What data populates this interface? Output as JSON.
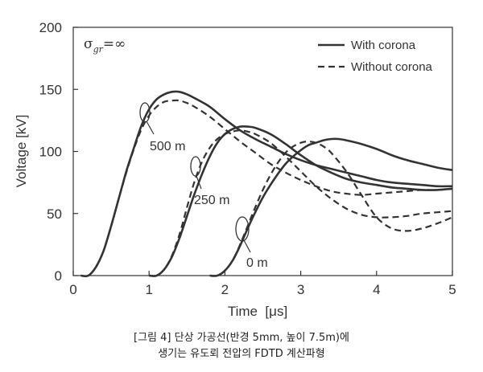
{
  "chart_data": {
    "type": "line",
    "xlabel": "Time  [μs]",
    "ylabel": "Voltage  [kV]",
    "xlim": [
      0,
      5
    ],
    "ylim": [
      0,
      200
    ],
    "x_ticks": [
      "0",
      "1",
      "2",
      "3",
      "4",
      "5"
    ],
    "y_ticks": [
      "0",
      "50",
      "100",
      "150",
      "200"
    ],
    "grid": false,
    "legend_position": "top-right",
    "legend": [
      {
        "label": "With corona",
        "style": "solid"
      },
      {
        "label": "Without corona",
        "style": "dashed"
      }
    ],
    "annotation_sigma": {
      "symbol": "σ",
      "sub": "gr",
      "rest": "=∞"
    },
    "annotations": [
      "500 m",
      "250 m",
      "0 m"
    ],
    "series": [
      {
        "legend": "With corona",
        "annotation": "500 m",
        "style": "solid",
        "x": [
          0.1,
          0.2,
          0.3,
          0.4,
          0.5,
          0.6,
          0.7,
          0.8,
          0.9,
          1.0,
          1.1,
          1.2,
          1.3,
          1.4,
          1.5,
          1.6,
          1.8,
          2.0,
          2.2,
          2.4,
          2.6,
          2.8,
          3.0,
          3.2,
          3.4,
          3.6,
          3.8,
          4.0,
          4.2,
          4.4,
          4.6,
          4.8,
          5.0
        ],
        "y": [
          0,
          0,
          7,
          20,
          40,
          62,
          84,
          103,
          121,
          134,
          142,
          146,
          148,
          148,
          146,
          143,
          136,
          126,
          117,
          110,
          104,
          98,
          93,
          89,
          86,
          83,
          80,
          77,
          75,
          74,
          73,
          72,
          72
        ]
      },
      {
        "legend": "Without corona",
        "annotation": "500 m",
        "style": "dashed",
        "x": [
          0.1,
          0.2,
          0.3,
          0.4,
          0.5,
          0.6,
          0.7,
          0.8,
          0.9,
          1.0,
          1.1,
          1.2,
          1.3,
          1.4,
          1.5,
          1.6,
          1.8,
          2.0,
          2.2,
          2.4,
          2.6,
          2.8,
          3.0,
          3.2,
          3.4,
          3.6,
          3.8,
          4.0,
          4.2,
          4.4,
          4.6,
          4.8,
          5.0
        ],
        "y": [
          0,
          0,
          7,
          20,
          40,
          62,
          83,
          102,
          118,
          129,
          136,
          140,
          141,
          141,
          139,
          136,
          128,
          118,
          108,
          99,
          90,
          83,
          77,
          72,
          68,
          66,
          65,
          66,
          67,
          68,
          69,
          69,
          70
        ]
      },
      {
        "legend": "With corona",
        "annotation": "250 m",
        "style": "solid",
        "x": [
          1.0,
          1.1,
          1.2,
          1.3,
          1.4,
          1.5,
          1.6,
          1.7,
          1.8,
          1.9,
          2.0,
          2.1,
          2.2,
          2.3,
          2.4,
          2.6,
          2.8,
          3.0,
          3.2,
          3.4,
          3.6,
          3.8,
          4.0,
          4.2,
          4.4,
          4.6,
          4.8,
          5.0
        ],
        "y": [
          0,
          0,
          5,
          15,
          30,
          48,
          66,
          82,
          96,
          107,
          114,
          118,
          120,
          120,
          119,
          114,
          106,
          97,
          89,
          83,
          78,
          75,
          73,
          71,
          70,
          69,
          69,
          70
        ]
      },
      {
        "legend": "Without corona",
        "annotation": "250 m",
        "style": "dashed",
        "x": [
          1.0,
          1.1,
          1.2,
          1.3,
          1.4,
          1.5,
          1.6,
          1.7,
          1.8,
          1.9,
          2.0,
          2.1,
          2.2,
          2.3,
          2.4,
          2.6,
          2.8,
          3.0,
          3.2,
          3.4,
          3.6,
          3.8,
          4.0,
          4.2,
          4.4,
          4.6,
          4.8,
          5.0
        ],
        "y": [
          0,
          0,
          5,
          16,
          33,
          55,
          76,
          92,
          103,
          110,
          114,
          116,
          117,
          116,
          114,
          107,
          96,
          84,
          72,
          62,
          54,
          49,
          47,
          47,
          48,
          50,
          51,
          52
        ]
      },
      {
        "legend": "With corona",
        "annotation": "0 m",
        "style": "solid",
        "x": [
          1.8,
          1.9,
          2.0,
          2.1,
          2.2,
          2.3,
          2.4,
          2.5,
          2.6,
          2.7,
          2.8,
          2.9,
          3.0,
          3.1,
          3.2,
          3.3,
          3.4,
          3.5,
          3.6,
          3.8,
          4.0,
          4.2,
          4.4,
          4.6,
          4.8,
          5.0
        ],
        "y": [
          0,
          0,
          4,
          12,
          24,
          38,
          51,
          63,
          73,
          82,
          90,
          96,
          101,
          105,
          107,
          109,
          110,
          110,
          109,
          106,
          102,
          97,
          93,
          90,
          87,
          85
        ]
      },
      {
        "legend": "Without corona",
        "annotation": "0 m",
        "style": "dashed",
        "x": [
          1.8,
          1.9,
          2.0,
          2.1,
          2.2,
          2.3,
          2.4,
          2.5,
          2.6,
          2.7,
          2.8,
          2.9,
          3.0,
          3.1,
          3.2,
          3.3,
          3.4,
          3.6,
          3.8,
          4.0,
          4.2,
          4.4,
          4.6,
          4.8,
          5.0
        ],
        "y": [
          0,
          0,
          4,
          12,
          25,
          40,
          55,
          69,
          81,
          91,
          99,
          104,
          107,
          108,
          107,
          104,
          99,
          84,
          65,
          47,
          38,
          36,
          38,
          42,
          47
        ]
      }
    ]
  },
  "caption": {
    "line1": "[그림 4] 단상 가공선(반경 5mm, 높이 7.5m)에",
    "line2": "생기는 유도뢰 전압의 FDTD 계산파형"
  }
}
